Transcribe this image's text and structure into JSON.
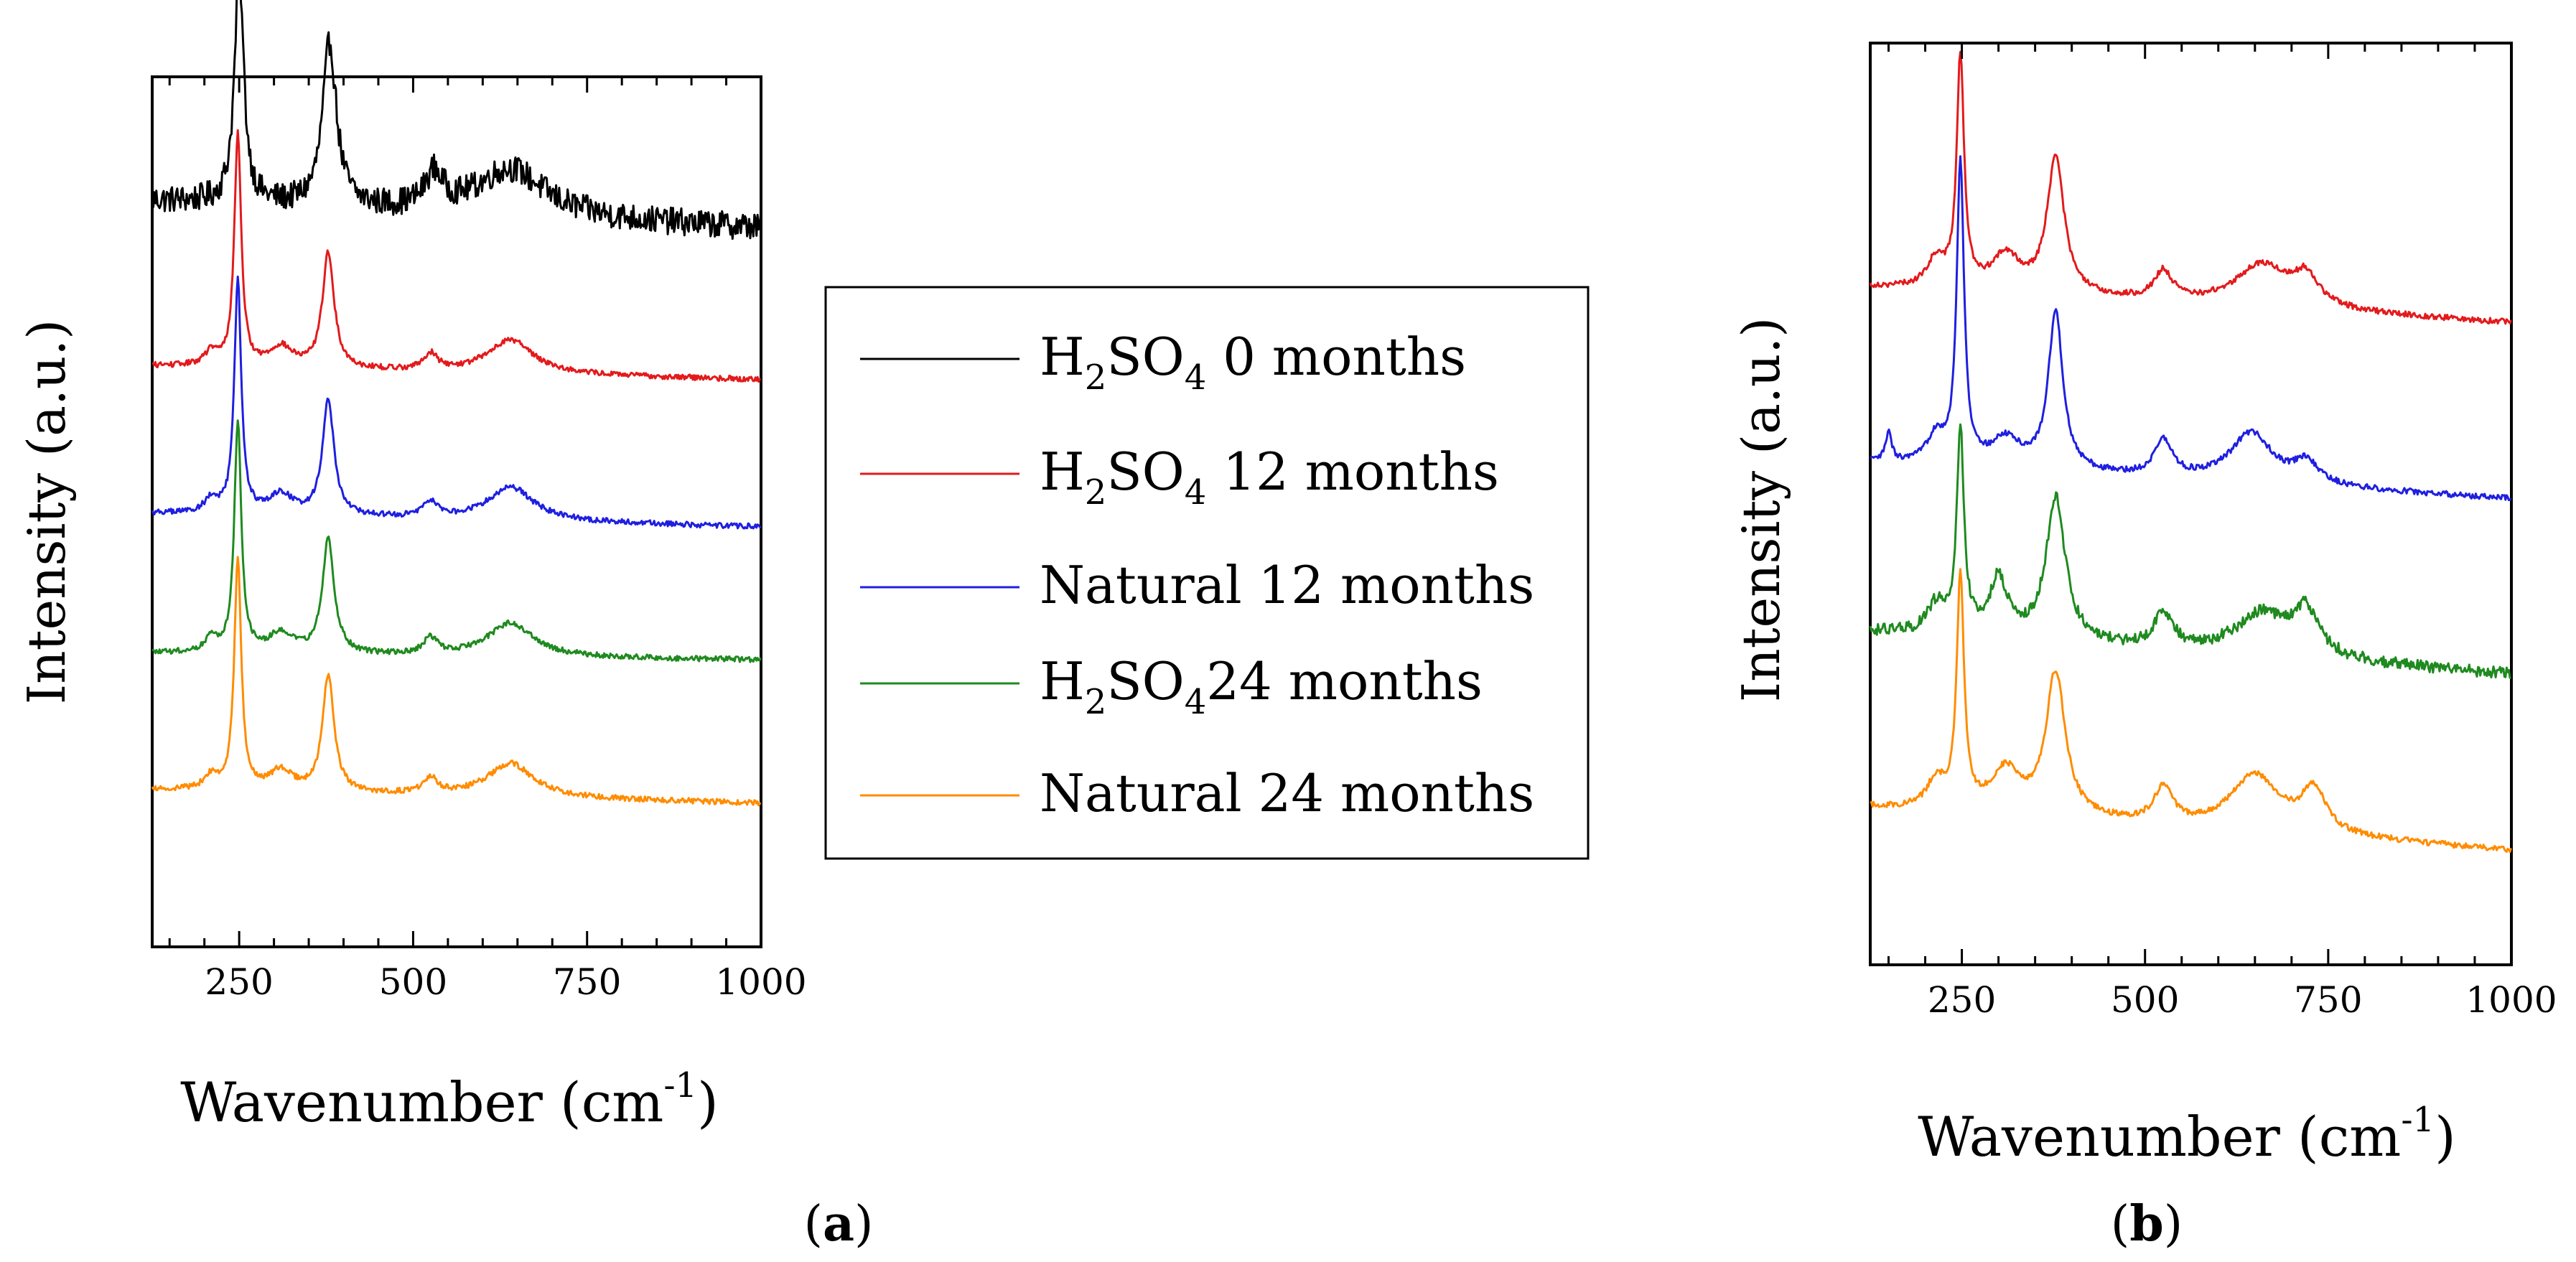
{
  "figure": {
    "panel_labels": [
      "(a)",
      "(b)"
    ]
  },
  "legend": {
    "entries": [
      {
        "label": "H2SO4 0 months",
        "color": "#000000"
      },
      {
        "label": "H2SO4 12 months",
        "color": "#e31a1c"
      },
      {
        "label": "Natural 12 months",
        "color": "#1f1fe0"
      },
      {
        "label": "H2SO4 24 months",
        "color": "#1f8a1f"
      },
      {
        "label": "Natural 24 months",
        "color": "#ff8c00"
      }
    ]
  },
  "chart_data": [
    {
      "type": "line",
      "panel": "(a)",
      "xlabel": "Wavenumber (cm-1)",
      "ylabel": "Intensity (a.u.)",
      "xlim": [
        125,
        1000
      ],
      "xticks": [
        250,
        500,
        750,
        1000
      ],
      "y_ticks_labeled": false,
      "grid": false,
      "legend_placement": "right of panel (a)",
      "series": [
        {
          "name": "H2SO4 0 months",
          "color": "#000000",
          "noise": 0.01,
          "baseline_start": 0.165,
          "baseline_end": 0.145,
          "peaks": [
            [
              250,
              0.17,
              8
            ],
            [
              380,
              0.12,
              12
            ],
            [
              530,
              0.025,
              15
            ],
            [
              640,
              0.035,
              60
            ]
          ]
        },
        {
          "name": "H2SO4 12 months",
          "color": "#e31a1c",
          "noise": 0.002,
          "baseline_start": 0.055,
          "baseline_end": 0.045,
          "peaks": [
            [
              210,
              0.01,
              12
            ],
            [
              248,
              0.17,
              6
            ],
            [
              310,
              0.015,
              20
            ],
            [
              378,
              0.085,
              10
            ],
            [
              525,
              0.012,
              12
            ],
            [
              640,
              0.025,
              40
            ]
          ]
        },
        {
          "name": "Natural 12 months",
          "color": "#1f1fe0",
          "noise": 0.002,
          "baseline_start": 0.07,
          "baseline_end": 0.06,
          "peaks": [
            [
              210,
              0.01,
              12
            ],
            [
              248,
              0.17,
              6
            ],
            [
              310,
              0.015,
              20
            ],
            [
              378,
              0.085,
              10
            ],
            [
              525,
              0.012,
              12
            ],
            [
              640,
              0.025,
              40
            ]
          ]
        },
        {
          "name": "H2SO4 24 months",
          "color": "#1f8a1f",
          "noise": 0.002,
          "baseline_start": 0.07,
          "baseline_end": 0.065,
          "peaks": [
            [
              210,
              0.01,
              12
            ],
            [
              248,
              0.17,
              6
            ],
            [
              310,
              0.015,
              20
            ],
            [
              378,
              0.085,
              10
            ],
            [
              525,
              0.012,
              12
            ],
            [
              640,
              0.025,
              40
            ]
          ]
        },
        {
          "name": "Natural 24 months",
          "color": "#ff8c00",
          "noise": 0.002,
          "baseline_start": 0.065,
          "baseline_end": 0.055,
          "peaks": [
            [
              210,
              0.01,
              12
            ],
            [
              248,
              0.17,
              6
            ],
            [
              310,
              0.015,
              20
            ],
            [
              378,
              0.085,
              10
            ],
            [
              525,
              0.012,
              12
            ],
            [
              640,
              0.025,
              40
            ]
          ]
        }
      ]
    },
    {
      "type": "line",
      "panel": "(b)",
      "xlabel": "Wavenumber (cm-1)",
      "ylabel": "Intensity (a.u.)",
      "xlim": [
        125,
        1000
      ],
      "xticks": [
        250,
        500,
        750,
        1000
      ],
      "y_ticks_labeled": false,
      "grid": false,
      "series": [
        {
          "name": "H2SO4 12 months",
          "color": "#e31a1c",
          "noise": 0.002,
          "baseline_start": 0.1,
          "baseline_end": 0.075,
          "peaks": [
            [
              215,
              0.02,
              15
            ],
            [
              248,
              0.16,
              6
            ],
            [
              310,
              0.025,
              25
            ],
            [
              378,
              0.095,
              14
            ],
            [
              525,
              0.02,
              15
            ],
            [
              660,
              0.03,
              45
            ],
            [
              720,
              0.02,
              20
            ]
          ]
        },
        {
          "name": "Natural 12 months",
          "color": "#1f1fe0",
          "noise": 0.002,
          "baseline_start": 0.08,
          "baseline_end": 0.055,
          "peaks": [
            [
              150,
              0.02,
              5
            ],
            [
              215,
              0.02,
              15
            ],
            [
              248,
              0.21,
              6
            ],
            [
              310,
              0.02,
              25
            ],
            [
              378,
              0.11,
              12
            ],
            [
              525,
              0.025,
              15
            ],
            [
              645,
              0.035,
              35
            ],
            [
              720,
              0.015,
              20
            ]
          ]
        },
        {
          "name": "H2SO4 24 months",
          "color": "#1f8a1f",
          "noise": 0.004,
          "baseline_start": 0.08,
          "baseline_end": 0.05,
          "peaks": [
            [
              215,
              0.02,
              15
            ],
            [
              248,
              0.14,
              6
            ],
            [
              300,
              0.04,
              15
            ],
            [
              378,
              0.1,
              16
            ],
            [
              525,
              0.025,
              15
            ],
            [
              660,
              0.03,
              45
            ],
            [
              720,
              0.03,
              20
            ]
          ]
        },
        {
          "name": "Natural 24 months",
          "color": "#ff8c00",
          "noise": 0.002,
          "baseline_start": 0.06,
          "baseline_end": 0.03,
          "peaks": [
            [
              215,
              0.02,
              15
            ],
            [
              248,
              0.16,
              6
            ],
            [
              310,
              0.03,
              25
            ],
            [
              378,
              0.1,
              16
            ],
            [
              525,
              0.025,
              15
            ],
            [
              650,
              0.04,
              40
            ],
            [
              730,
              0.03,
              20
            ]
          ]
        }
      ]
    }
  ]
}
